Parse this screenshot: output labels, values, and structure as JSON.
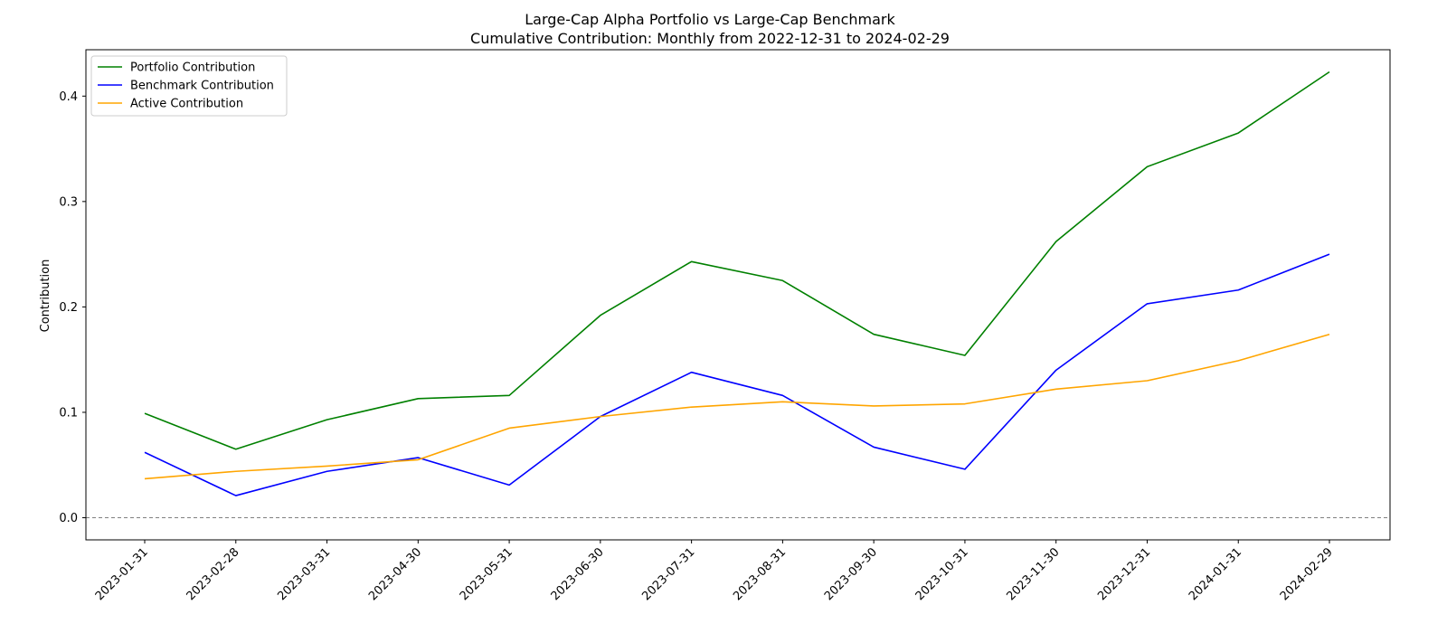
{
  "chart_data": {
    "type": "line",
    "title": "Large-Cap Alpha Portfolio vs Large-Cap Benchmark",
    "subtitle": "Cumulative Contribution: Monthly from 2022-12-31 to 2024-02-29",
    "xlabel": "",
    "ylabel": "Contribution",
    "x": [
      "2023-01-31",
      "2023-02-28",
      "2023-03-31",
      "2023-04-30",
      "2023-05-31",
      "2023-06-30",
      "2023-07-31",
      "2023-08-31",
      "2023-09-30",
      "2023-10-31",
      "2023-11-30",
      "2023-12-31",
      "2024-01-31",
      "2024-02-29"
    ],
    "yticks": [
      "0.0",
      "0.1",
      "0.2",
      "0.3",
      "0.4"
    ],
    "ylim": [
      -0.021,
      0.444
    ],
    "grid": false,
    "legend_position": "top-left",
    "reference_line": {
      "y": 0.0,
      "style": "dashed",
      "color": "#808080"
    },
    "series": [
      {
        "name": "Portfolio Contribution",
        "color": "#008000",
        "values": [
          0.099,
          0.065,
          0.093,
          0.113,
          0.116,
          0.192,
          0.243,
          0.225,
          0.174,
          0.154,
          0.262,
          0.333,
          0.365,
          0.423
        ]
      },
      {
        "name": "Benchmark Contribution",
        "color": "#0000ff",
        "values": [
          0.062,
          0.021,
          0.044,
          0.057,
          0.031,
          0.096,
          0.138,
          0.116,
          0.067,
          0.046,
          0.14,
          0.203,
          0.216,
          0.25
        ]
      },
      {
        "name": "Active Contribution",
        "color": "#ffa500",
        "values": [
          0.037,
          0.044,
          0.049,
          0.055,
          0.085,
          0.096,
          0.105,
          0.11,
          0.106,
          0.108,
          0.122,
          0.13,
          0.149,
          0.174
        ]
      }
    ]
  }
}
